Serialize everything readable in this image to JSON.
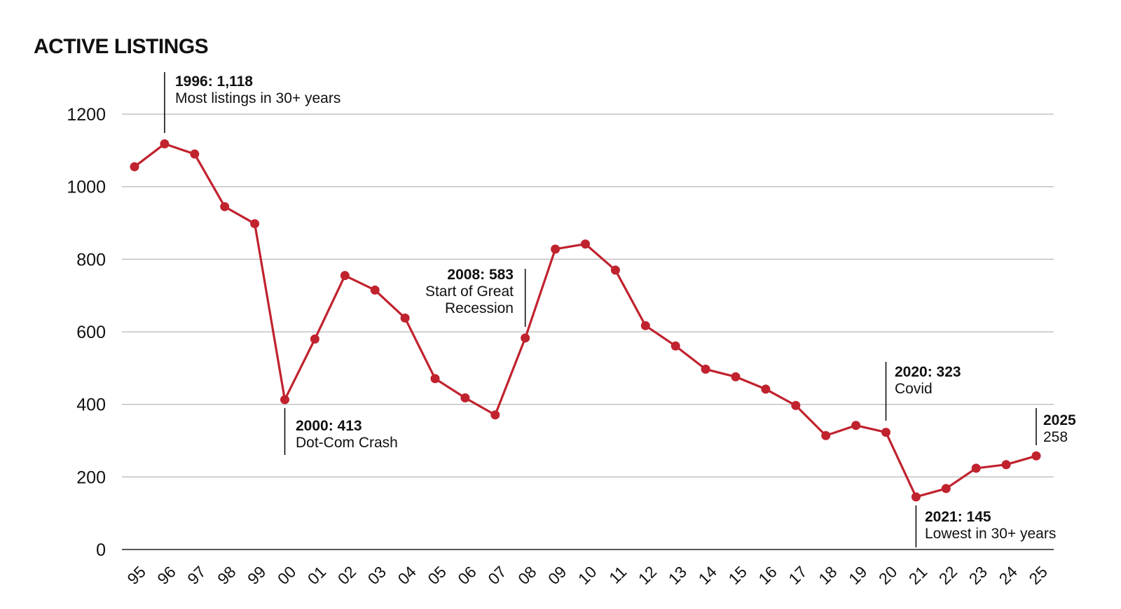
{
  "chart_data": {
    "type": "line",
    "title": "ACTIVE LISTINGS",
    "xlabel": "",
    "ylabel": "",
    "categories": [
      "95",
      "96",
      "97",
      "98",
      "99",
      "00",
      "01",
      "02",
      "03",
      "04",
      "05",
      "06",
      "07",
      "08",
      "09",
      "10",
      "11",
      "12",
      "13",
      "14",
      "15",
      "16",
      "17",
      "18",
      "19",
      "20",
      "21",
      "22",
      "23",
      "24",
      "25"
    ],
    "series": [
      {
        "values": [
          1055,
          1118,
          1090,
          945,
          898,
          413,
          580,
          755,
          715,
          638,
          471,
          418,
          371,
          583,
          828,
          842,
          770,
          617,
          561,
          497,
          476,
          442,
          397,
          314,
          342,
          323,
          145,
          168,
          224,
          234,
          258
        ]
      }
    ],
    "y_ticks": [
      "0",
      "200",
      "400",
      "600",
      "800",
      "1000",
      "1200"
    ],
    "ylim": [
      0,
      1200
    ],
    "grid": true,
    "line_color": "#c0222e",
    "grid_color": "#bdbdbd",
    "annotations": [
      {
        "index": 1,
        "bold": "1996: 1,118",
        "lines": [
          "Most listings in 30+ years"
        ]
      },
      {
        "index": 5,
        "bold": "2000: 413",
        "lines": [
          "Dot-Com Crash"
        ]
      },
      {
        "index": 13,
        "bold": "2008: 583",
        "lines": [
          "Start of Great",
          "Recession"
        ]
      },
      {
        "index": 25,
        "bold": "2020: 323",
        "lines": [
          "Covid"
        ]
      },
      {
        "index": 26,
        "bold": "2021: 145",
        "lines": [
          "Lowest in 30+ years"
        ]
      },
      {
        "index": 30,
        "bold": "2025",
        "lines": [
          "258"
        ]
      }
    ]
  }
}
